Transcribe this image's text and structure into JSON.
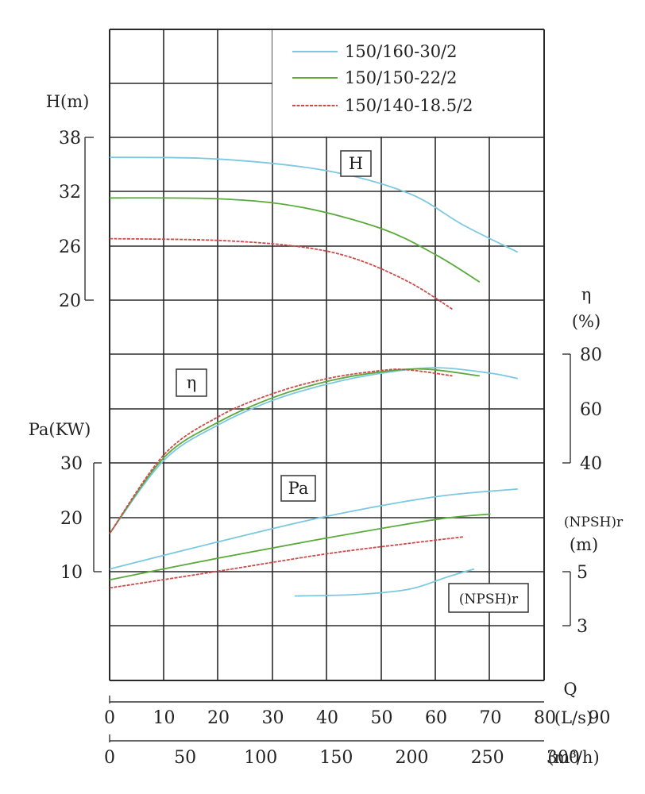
{
  "chart_data": {
    "type": "line",
    "legend": {
      "placement": "top-right",
      "entries": [
        {
          "name": "150/160-30/2",
          "color": "#7cc8e0"
        },
        {
          "name": "150/150-22/2",
          "color": "#5aaa3c"
        },
        {
          "name": "150/140-18.5/2",
          "color": "#d04a4a"
        }
      ]
    },
    "grid": true,
    "x_axis": {
      "label": "Q",
      "unit_ls": "(L/s)",
      "unit_m3h": "(m³/h)",
      "ticks_ls": [
        "0",
        "10",
        "20",
        "30",
        "40",
        "50",
        "60",
        "70",
        "80",
        "90"
      ],
      "ticks_m3h": [
        "0",
        "50",
        "100",
        "150",
        "200",
        "250",
        "300"
      ],
      "range_ls": [
        0,
        80
      ]
    },
    "head_axis": {
      "label": "H(m)",
      "ticks": [
        "38",
        "32",
        "26",
        "20"
      ],
      "range": [
        20,
        38
      ]
    },
    "eff_axis": {
      "label_top": "η",
      "label_bottom": "(%)",
      "ticks": [
        "80",
        "60",
        "40"
      ],
      "range": [
        40,
        80
      ]
    },
    "power_axis": {
      "label": "Pa(KW)",
      "ticks": [
        "30",
        "20",
        "10"
      ],
      "range": [
        10,
        30
      ]
    },
    "npsh_axis": {
      "label_top": "(NPSH)r",
      "label_bottom": "(m)",
      "ticks": [
        "5",
        "3"
      ],
      "range": [
        3,
        5
      ]
    },
    "box_labels": {
      "head": "H",
      "eff": "η",
      "power": "Pa",
      "npsh": "(NPSH)r"
    },
    "curves": [
      {
        "series": 0,
        "kind": "head",
        "points": [
          [
            0,
            35.8
          ],
          [
            20,
            35.6
          ],
          [
            40,
            34.3
          ],
          [
            55,
            31.8
          ],
          [
            65,
            28.3
          ],
          [
            75,
            25.3
          ]
        ]
      },
      {
        "series": 1,
        "kind": "head",
        "points": [
          [
            0,
            31.3
          ],
          [
            20,
            31.2
          ],
          [
            35,
            30.3
          ],
          [
            50,
            27.9
          ],
          [
            60,
            25.0
          ],
          [
            68,
            22.0
          ]
        ]
      },
      {
        "series": 2,
        "kind": "head",
        "points": [
          [
            0,
            26.8
          ],
          [
            20,
            26.6
          ],
          [
            35,
            25.9
          ],
          [
            45,
            24.6
          ],
          [
            55,
            22.0
          ],
          [
            63,
            19.0
          ]
        ]
      },
      {
        "series": 0,
        "kind": "efficiency",
        "points": [
          [
            0,
            14
          ],
          [
            10,
            41
          ],
          [
            20,
            54
          ],
          [
            30,
            63
          ],
          [
            40,
            69
          ],
          [
            50,
            73
          ],
          [
            60,
            75
          ],
          [
            70,
            73
          ],
          [
            75,
            71
          ]
        ]
      },
      {
        "series": 1,
        "kind": "efficiency",
        "points": [
          [
            0,
            14
          ],
          [
            10,
            42
          ],
          [
            20,
            55
          ],
          [
            30,
            64
          ],
          [
            40,
            70
          ],
          [
            50,
            73.5
          ],
          [
            58,
            74.5
          ],
          [
            68,
            72
          ]
        ]
      },
      {
        "series": 2,
        "kind": "efficiency",
        "points": [
          [
            0,
            14
          ],
          [
            10,
            43
          ],
          [
            20,
            57
          ],
          [
            30,
            65.5
          ],
          [
            40,
            71
          ],
          [
            50,
            74
          ],
          [
            55,
            74.2
          ],
          [
            63,
            72
          ]
        ]
      },
      {
        "series": 0,
        "kind": "power",
        "points": [
          [
            0,
            10.5
          ],
          [
            20,
            15.5
          ],
          [
            40,
            20.2
          ],
          [
            60,
            23.8
          ],
          [
            75,
            25.2
          ]
        ]
      },
      {
        "series": 1,
        "kind": "power",
        "points": [
          [
            0,
            8.5
          ],
          [
            20,
            12.5
          ],
          [
            40,
            16.2
          ],
          [
            60,
            19.6
          ],
          [
            70,
            20.6
          ]
        ]
      },
      {
        "series": 2,
        "kind": "power",
        "points": [
          [
            0,
            7
          ],
          [
            20,
            10.1
          ],
          [
            40,
            13.3
          ],
          [
            55,
            15.2
          ],
          [
            65,
            16.4
          ]
        ]
      },
      {
        "series": 0,
        "kind": "npsh",
        "points": [
          [
            34,
            4.1
          ],
          [
            45,
            4.15
          ],
          [
            55,
            4.35
          ],
          [
            62,
            4.8
          ],
          [
            67,
            5.1
          ]
        ]
      }
    ]
  }
}
